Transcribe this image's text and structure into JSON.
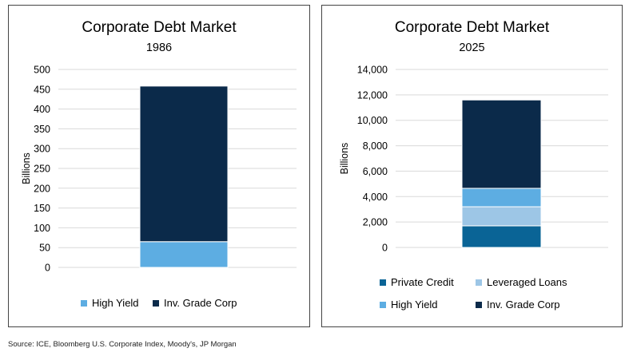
{
  "chart_data": [
    {
      "type": "bar",
      "stacked": true,
      "title": "Corporate Debt Market",
      "subtitle": "1986",
      "ylabel": "Billions",
      "xlabel": "",
      "ylim": [
        0,
        500
      ],
      "yticks": [
        0,
        50,
        100,
        150,
        200,
        250,
        300,
        350,
        400,
        450,
        500
      ],
      "ytick_labels": [
        "0",
        "50",
        "100",
        "150",
        "200",
        "250",
        "300",
        "350",
        "400",
        "450",
        "500"
      ],
      "grid": true,
      "legend": "bottom",
      "categories": [
        ""
      ],
      "series": [
        {
          "name": "High Yield",
          "values": [
            65
          ],
          "color": "#5dade2"
        },
        {
          "name": "Inv. Grade Corp",
          "values": [
            393
          ],
          "color": "#0b2a4a"
        }
      ]
    },
    {
      "type": "bar",
      "stacked": true,
      "title": "Corporate Debt Market",
      "subtitle": "2025",
      "ylabel": "Billions",
      "xlabel": "",
      "ylim": [
        0,
        14000
      ],
      "yticks": [
        0,
        2000,
        4000,
        6000,
        8000,
        10000,
        12000,
        14000
      ],
      "ytick_labels": [
        "0",
        "2,000",
        "4,000",
        "6,000",
        "8,000",
        "10,000",
        "12,000",
        "14,000"
      ],
      "grid": true,
      "legend": "bottom",
      "categories": [
        ""
      ],
      "series": [
        {
          "name": "Private Credit",
          "values": [
            1700
          ],
          "color": "#0a6496"
        },
        {
          "name": "Leveraged Loans",
          "values": [
            1500
          ],
          "color": "#9dc6e6"
        },
        {
          "name": "High Yield",
          "values": [
            1450
          ],
          "color": "#5dade2"
        },
        {
          "name": "Inv. Grade Corp",
          "values": [
            6950
          ],
          "color": "#0b2a4a"
        }
      ]
    }
  ],
  "source": "Source: ICE, Bloomberg U.S. Corporate Index, Moody's, JP Morgan"
}
